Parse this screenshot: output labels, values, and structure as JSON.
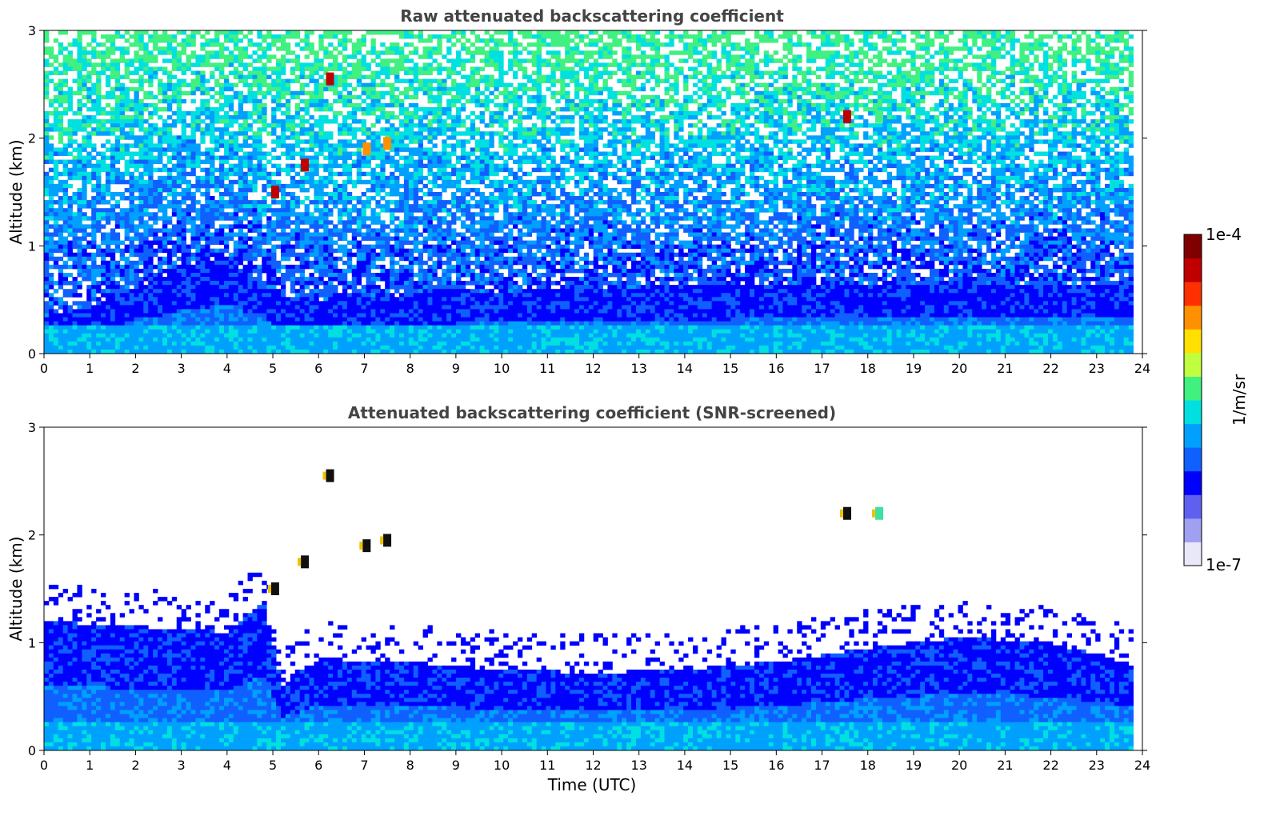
{
  "chart_data": [
    {
      "type": "heatmap",
      "title": "Raw attenuated backscattering coefficient",
      "xlabel": "",
      "ylabel": "Altitude (km)",
      "xlim": [
        0,
        24
      ],
      "ylim": [
        0,
        3
      ],
      "x_ticks": [
        "0",
        "1",
        "2",
        "3",
        "4",
        "5",
        "6",
        "7",
        "8",
        "9",
        "10",
        "11",
        "12",
        "13",
        "14",
        "15",
        "16",
        "17",
        "18",
        "19",
        "20",
        "21",
        "22",
        "23",
        "24"
      ],
      "y_ticks": [
        "0",
        "1",
        "2",
        "3"
      ],
      "data_end_time": 23.8,
      "noise_ceiling_km": 3.0,
      "boundary_layer_top_km": [
        {
          "time": 0,
          "alt": 0.35
        },
        {
          "time": 1,
          "alt": 0.45
        },
        {
          "time": 2,
          "alt": 0.6
        },
        {
          "time": 3,
          "alt": 0.8
        },
        {
          "time": 4,
          "alt": 0.9
        },
        {
          "time": 5,
          "alt": 0.55
        },
        {
          "time": 6,
          "alt": 0.5
        },
        {
          "time": 8,
          "alt": 0.55
        },
        {
          "time": 12,
          "alt": 0.6
        },
        {
          "time": 16,
          "alt": 0.65
        },
        {
          "time": 20,
          "alt": 0.65
        },
        {
          "time": 23.8,
          "alt": 0.65
        }
      ],
      "cloud_features": [
        {
          "time": 5.05,
          "alt": 1.5,
          "intensity": "high"
        },
        {
          "time": 5.7,
          "alt": 1.75,
          "intensity": "high"
        },
        {
          "time": 6.25,
          "alt": 2.55,
          "intensity": "high"
        },
        {
          "time": 7.05,
          "alt": 1.9,
          "intensity": "medium"
        },
        {
          "time": 7.5,
          "alt": 1.95,
          "intensity": "medium"
        },
        {
          "time": 17.55,
          "alt": 2.2,
          "intensity": "high"
        },
        {
          "time": 18.25,
          "alt": 2.2,
          "intensity": "low"
        }
      ]
    },
    {
      "type": "heatmap",
      "title": "Attenuated backscattering coefficient (SNR-screened)",
      "xlabel": "Time (UTC)",
      "ylabel": "Altitude (km)",
      "xlim": [
        0,
        24
      ],
      "ylim": [
        0,
        3
      ],
      "x_ticks": [
        "0",
        "1",
        "2",
        "3",
        "4",
        "5",
        "6",
        "7",
        "8",
        "9",
        "10",
        "11",
        "12",
        "13",
        "14",
        "15",
        "16",
        "17",
        "18",
        "19",
        "20",
        "21",
        "22",
        "23",
        "24"
      ],
      "y_ticks": [
        "0",
        "1",
        "2",
        "3"
      ],
      "data_end_time": 23.8,
      "screened_top_km": [
        {
          "time": 0,
          "alt": 1.2
        },
        {
          "time": 2,
          "alt": 1.15
        },
        {
          "time": 4,
          "alt": 1.1
        },
        {
          "time": 4.8,
          "alt": 1.4
        },
        {
          "time": 5.2,
          "alt": 0.6
        },
        {
          "time": 6,
          "alt": 0.85
        },
        {
          "time": 8,
          "alt": 0.82
        },
        {
          "time": 10,
          "alt": 0.75
        },
        {
          "time": 12,
          "alt": 0.72
        },
        {
          "time": 14,
          "alt": 0.75
        },
        {
          "time": 16,
          "alt": 0.82
        },
        {
          "time": 18,
          "alt": 0.95
        },
        {
          "time": 20,
          "alt": 1.05
        },
        {
          "time": 22,
          "alt": 1.0
        },
        {
          "time": 23.8,
          "alt": 0.8
        }
      ],
      "cloud_features": [
        {
          "time": 5.05,
          "alt": 1.5,
          "intensity": "high"
        },
        {
          "time": 5.7,
          "alt": 1.75,
          "intensity": "high"
        },
        {
          "time": 6.25,
          "alt": 2.55,
          "intensity": "high"
        },
        {
          "time": 7.05,
          "alt": 1.9,
          "intensity": "medium"
        },
        {
          "time": 7.5,
          "alt": 1.95,
          "intensity": "medium"
        },
        {
          "time": 17.55,
          "alt": 2.2,
          "intensity": "high"
        },
        {
          "time": 18.25,
          "alt": 2.2,
          "intensity": "low"
        }
      ]
    }
  ],
  "colorbar": {
    "label": "1/m/sr",
    "max_label": "1e-4",
    "min_label": "1e-7",
    "colormap": [
      "#e8e8f8",
      "#a0a0f0",
      "#6060f0",
      "#0000ff",
      "#1060ff",
      "#00a0ff",
      "#00e0e0",
      "#40f080",
      "#c0ff40",
      "#ffe000",
      "#ff9000",
      "#ff3000",
      "#c00000",
      "#800000"
    ]
  }
}
